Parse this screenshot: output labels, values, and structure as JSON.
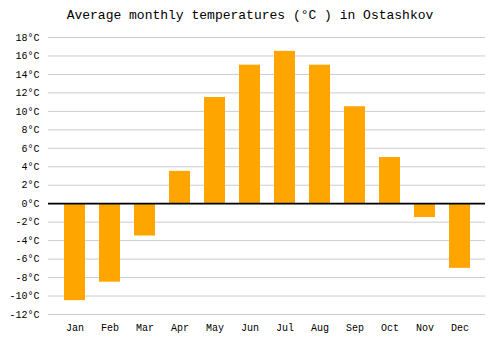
{
  "chart_data": {
    "type": "bar",
    "title": "Average monthly temperatures (°C ) in Ostashkov",
    "categories": [
      "Jan",
      "Feb",
      "Mar",
      "Apr",
      "May",
      "Jun",
      "Jul",
      "Aug",
      "Sep",
      "Oct",
      "Nov",
      "Dec"
    ],
    "values": [
      -10.5,
      -8.5,
      -3.5,
      3.5,
      11.5,
      15.0,
      16.5,
      15.0,
      10.5,
      5.0,
      -1.5,
      -7.0
    ],
    "color": "#FFA500",
    "ylim": [
      -12,
      18
    ],
    "yticks": [
      {
        "value": -12,
        "label": "-12°C"
      },
      {
        "value": -10,
        "label": "-10°C"
      },
      {
        "value": -8,
        "label": "-8°C"
      },
      {
        "value": -6,
        "label": "-6°C"
      },
      {
        "value": -4,
        "label": "-4°C"
      },
      {
        "value": -2,
        "label": "-2°C"
      },
      {
        "value": 0,
        "label": "0°C"
      },
      {
        "value": 2,
        "label": "2°C"
      },
      {
        "value": 4,
        "label": "4°C"
      },
      {
        "value": 6,
        "label": "6°C"
      },
      {
        "value": 8,
        "label": "8°C"
      },
      {
        "value": 10,
        "label": "10°C"
      },
      {
        "value": 12,
        "label": "12°C"
      },
      {
        "value": 14,
        "label": "14°C"
      },
      {
        "value": 16,
        "label": "16°C"
      },
      {
        "value": 18,
        "label": "18°C"
      }
    ],
    "grid": true
  }
}
